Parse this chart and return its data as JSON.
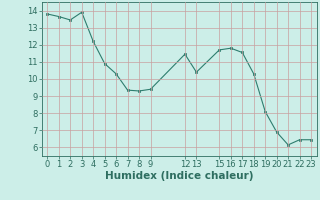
{
  "x": [
    0,
    1,
    2,
    3,
    4,
    5,
    6,
    7,
    8,
    9,
    12,
    13,
    15,
    16,
    17,
    18,
    19,
    20,
    21,
    22,
    23
  ],
  "y": [
    13.8,
    13.65,
    13.45,
    13.9,
    12.2,
    10.9,
    10.3,
    9.35,
    9.3,
    9.4,
    11.45,
    10.4,
    11.7,
    11.8,
    11.55,
    10.3,
    8.1,
    6.9,
    6.15,
    6.45,
    6.45
  ],
  "xticks": [
    0,
    1,
    2,
    3,
    4,
    5,
    6,
    7,
    8,
    9,
    12,
    13,
    15,
    16,
    17,
    18,
    19,
    20,
    21,
    22,
    23
  ],
  "xtick_labels": [
    "0",
    "1",
    "2",
    "3",
    "4",
    "5",
    "6",
    "7",
    "8",
    "9",
    "12",
    "13",
    "15",
    "16",
    "17",
    "18",
    "19",
    "20",
    "21",
    "22",
    "23"
  ],
  "yticks": [
    6,
    7,
    8,
    9,
    10,
    11,
    12,
    13,
    14
  ],
  "ylim": [
    5.5,
    14.5
  ],
  "xlim": [
    -0.5,
    23.5
  ],
  "xlabel": "Humidex (Indice chaleur)",
  "line_color": "#2e7d6e",
  "marker": "s",
  "marker_size": 2,
  "bg_color": "#cceee8",
  "grid_color": "#b0b0b0",
  "tick_color": "#2e6e60",
  "label_color": "#2e6e60",
  "tick_fontsize": 6,
  "xlabel_fontsize": 7.5
}
